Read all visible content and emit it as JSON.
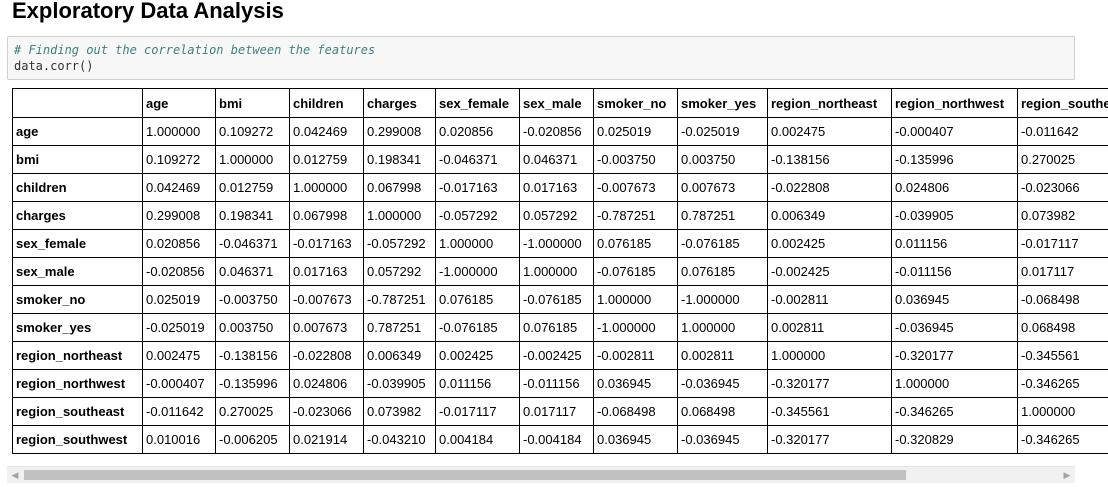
{
  "title": "Exploratory Data Analysis",
  "code": {
    "comment": "# Finding out the correlation between the features",
    "line": "data.corr()"
  },
  "table": {
    "columns": [
      "age",
      "bmi",
      "children",
      "charges",
      "sex_female",
      "sex_male",
      "smoker_no",
      "smoker_yes",
      "region_northeast",
      "region_northwest",
      "region_southeast"
    ],
    "rows": [
      {
        "label": "age",
        "values": [
          "1.000000",
          "0.109272",
          "0.042469",
          "0.299008",
          "0.020856",
          "-0.020856",
          "0.025019",
          "-0.025019",
          "0.002475",
          "-0.000407",
          "-0.011642"
        ]
      },
      {
        "label": "bmi",
        "values": [
          "0.109272",
          "1.000000",
          "0.012759",
          "0.198341",
          "-0.046371",
          "0.046371",
          "-0.003750",
          "0.003750",
          "-0.138156",
          "-0.135996",
          "0.270025"
        ]
      },
      {
        "label": "children",
        "values": [
          "0.042469",
          "0.012759",
          "1.000000",
          "0.067998",
          "-0.017163",
          "0.017163",
          "-0.007673",
          "0.007673",
          "-0.022808",
          "0.024806",
          "-0.023066"
        ]
      },
      {
        "label": "charges",
        "values": [
          "0.299008",
          "0.198341",
          "0.067998",
          "1.000000",
          "-0.057292",
          "0.057292",
          "-0.787251",
          "0.787251",
          "0.006349",
          "-0.039905",
          "0.073982"
        ]
      },
      {
        "label": "sex_female",
        "values": [
          "0.020856",
          "-0.046371",
          "-0.017163",
          "-0.057292",
          "1.000000",
          "-1.000000",
          "0.076185",
          "-0.076185",
          "0.002425",
          "0.011156",
          "-0.017117"
        ]
      },
      {
        "label": "sex_male",
        "values": [
          "-0.020856",
          "0.046371",
          "0.017163",
          "0.057292",
          "-1.000000",
          "1.000000",
          "-0.076185",
          "0.076185",
          "-0.002425",
          "-0.011156",
          "0.017117"
        ]
      },
      {
        "label": "smoker_no",
        "values": [
          "0.025019",
          "-0.003750",
          "-0.007673",
          "-0.787251",
          "0.076185",
          "-0.076185",
          "1.000000",
          "-1.000000",
          "-0.002811",
          "0.036945",
          "-0.068498"
        ]
      },
      {
        "label": "smoker_yes",
        "values": [
          "-0.025019",
          "0.003750",
          "0.007673",
          "0.787251",
          "-0.076185",
          "0.076185",
          "-1.000000",
          "1.000000",
          "0.002811",
          "-0.036945",
          "0.068498"
        ]
      },
      {
        "label": "region_northeast",
        "values": [
          "0.002475",
          "-0.138156",
          "-0.022808",
          "0.006349",
          "0.002425",
          "-0.002425",
          "-0.002811",
          "0.002811",
          "1.000000",
          "-0.320177",
          "-0.345561"
        ]
      },
      {
        "label": "region_northwest",
        "values": [
          "-0.000407",
          "-0.135996",
          "0.024806",
          "-0.039905",
          "0.011156",
          "-0.011156",
          "0.036945",
          "-0.036945",
          "-0.320177",
          "1.000000",
          "-0.346265"
        ]
      },
      {
        "label": "region_southeast",
        "values": [
          "-0.011642",
          "0.270025",
          "-0.023066",
          "0.073982",
          "-0.017117",
          "0.017117",
          "-0.068498",
          "0.068498",
          "-0.345561",
          "-0.346265",
          "1.000000"
        ]
      },
      {
        "label": "region_southwest",
        "values": [
          "0.010016",
          "-0.006205",
          "0.021914",
          "-0.043210",
          "0.004184",
          "-0.004184",
          "0.036945",
          "-0.036945",
          "-0.320177",
          "-0.320829",
          "-0.346265"
        ]
      }
    ]
  },
  "scrollbar": {
    "left_arrow": "◀",
    "right_arrow": "▶"
  }
}
